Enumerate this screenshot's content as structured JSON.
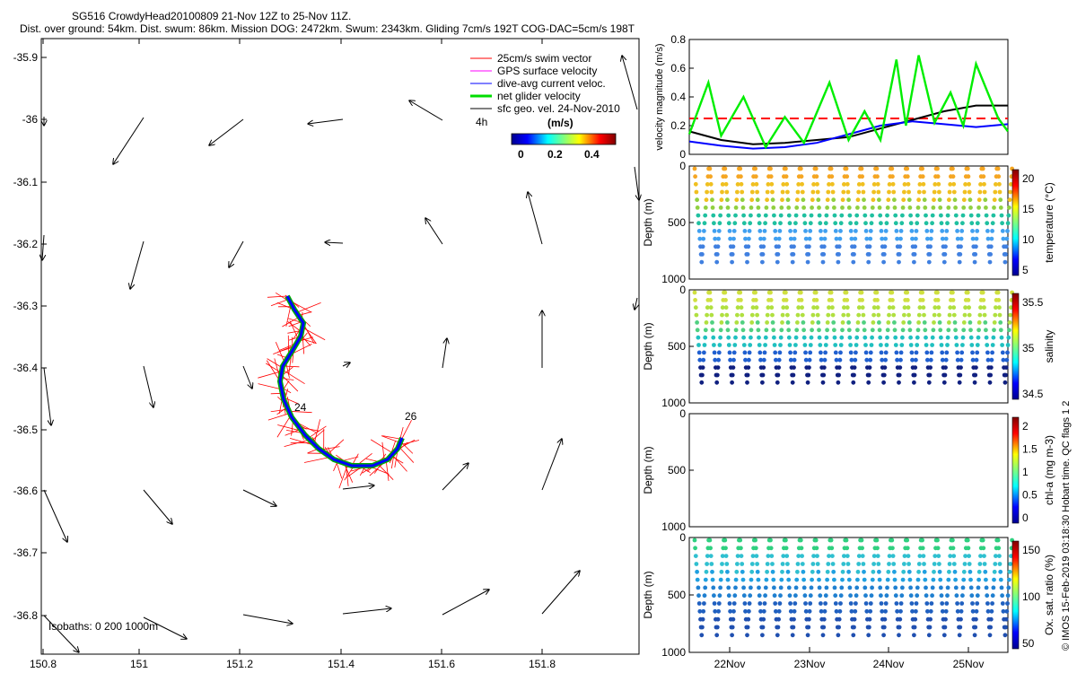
{
  "header": {
    "title": "SG516 CrowdyHead20100809 21-Nov 12Z to 25-Nov 11Z.",
    "subtitle": "Dist. over ground: 54km. Dist. swum: 86km. Mission DOG: 2472km. Swum: 2343km. Gliding 7cm/s 192T COG-DAC=5cm/s 198T"
  },
  "map": {
    "legend": [
      {
        "label": "25cm/s swim vector",
        "color": "#ff0000"
      },
      {
        "label": "GPS surface velocity",
        "color": "#ff00ff"
      },
      {
        "label": "dive-avg current veloc.",
        "color": "#0000ff"
      },
      {
        "label": "net glider velocity",
        "color": "#00dd00"
      },
      {
        "label": "sfc geo. vel. 24-Nov-2010",
        "color": "#000000"
      }
    ],
    "legend_note": "4h",
    "colorbar": {
      "label": "(m/s)",
      "ticks": [
        "0",
        "0.2",
        "0.4"
      ]
    },
    "annotations": [
      "24",
      "26"
    ],
    "isobaths_text": "Isobaths: 0   200  1000m",
    "xticks": [
      "150.8",
      "151",
      "151.2",
      "151.4",
      "151.6",
      "151.8"
    ],
    "yticks": [
      "-35.9",
      "-36",
      "-36.1",
      "-36.2",
      "-36.3",
      "-36.4",
      "-36.5",
      "-36.6",
      "-36.7",
      "-36.8"
    ]
  },
  "chart_data": [
    {
      "type": "line",
      "title": "",
      "ylabel": "velocity magnitude (m/s)",
      "ylim": [
        0,
        0.8
      ],
      "yticks": [
        "0",
        "0.2",
        "0.4",
        "0.6",
        "0.8"
      ],
      "series": [
        {
          "color": "#ff0000",
          "style": "dashed",
          "x": [
            0,
            1
          ],
          "values": [
            0.25,
            0.25
          ]
        },
        {
          "color": "#000000",
          "x": [
            0,
            0.1,
            0.2,
            0.3,
            0.4,
            0.5,
            0.6,
            0.7,
            0.8,
            0.9,
            1.0
          ],
          "values": [
            0.16,
            0.1,
            0.07,
            0.08,
            0.1,
            0.12,
            0.18,
            0.24,
            0.3,
            0.34,
            0.34
          ]
        },
        {
          "color": "#0000ff",
          "x": [
            0,
            0.1,
            0.2,
            0.3,
            0.4,
            0.5,
            0.6,
            0.7,
            0.8,
            0.9,
            1.0
          ],
          "values": [
            0.09,
            0.06,
            0.04,
            0.05,
            0.08,
            0.14,
            0.2,
            0.23,
            0.21,
            0.19,
            0.21
          ]
        },
        {
          "color": "#00ee00",
          "x": [
            0,
            0.06,
            0.1,
            0.17,
            0.24,
            0.3,
            0.36,
            0.44,
            0.5,
            0.55,
            0.6,
            0.65,
            0.68,
            0.72,
            0.77,
            0.82,
            0.86,
            0.9,
            0.97,
            1.0
          ],
          "values": [
            0.14,
            0.5,
            0.13,
            0.4,
            0.05,
            0.26,
            0.08,
            0.5,
            0.1,
            0.3,
            0.1,
            0.66,
            0.2,
            0.69,
            0.22,
            0.43,
            0.2,
            0.63,
            0.25,
            0.16
          ]
        }
      ]
    },
    {
      "type": "scatter",
      "ylabel": "Depth (m)",
      "ylim": [
        0,
        1000
      ],
      "yticks": [
        "0",
        "500",
        "1000"
      ],
      "colorbar_label": "temperature (°C)",
      "colorbar_ticks": [
        "5",
        "10",
        "15",
        "20"
      ],
      "profile_max_depth": 850,
      "cycles": 21,
      "colors": [
        "#f5a623",
        "#f0c020",
        "#90d040",
        "#20c0a0",
        "#40a0f0",
        "#4080e0"
      ]
    },
    {
      "type": "scatter",
      "ylabel": "Depth (m)",
      "ylim": [
        0,
        1000
      ],
      "yticks": [
        "0",
        "500",
        "1000"
      ],
      "colorbar_label": "salinity",
      "colorbar_ticks": [
        "34.5",
        "35",
        "35.5"
      ],
      "profile_max_depth": 820,
      "cycles": 21,
      "colors": [
        "#d0e040",
        "#b0e040",
        "#50d080",
        "#20c0c0",
        "#2060d0",
        "#102080"
      ]
    },
    {
      "type": "scatter",
      "ylabel": "Depth (m)",
      "ylim": [
        0,
        1000
      ],
      "yticks": [
        "0",
        "500",
        "1000"
      ],
      "colorbar_label": "chl-a (mg m-3)",
      "colorbar_ticks": [
        "0",
        "0.5",
        "1",
        "1.5",
        "2"
      ],
      "profile_max_depth": 0,
      "cycles": 0,
      "colors": []
    },
    {
      "type": "scatter",
      "ylabel": "Depth (m)",
      "ylim": [
        0,
        1000
      ],
      "yticks": [
        "0",
        "500",
        "1000"
      ],
      "colorbar_label": "Ox. sat. ratio (%)",
      "colorbar_ticks": [
        "50",
        "100",
        "150"
      ],
      "profile_max_depth": 850,
      "cycles": 21,
      "colors": [
        "#30d080",
        "#30c0d0",
        "#20a0e0",
        "#2080d0",
        "#2060c0",
        "#2050b0"
      ]
    }
  ],
  "time_axis": {
    "ticks": [
      "22Nov",
      "23Nov",
      "24Nov",
      "25Nov"
    ]
  },
  "credit": "© IMOS 15-Feb-2019 03:18:30 Hobart time. QC flags 1  2"
}
